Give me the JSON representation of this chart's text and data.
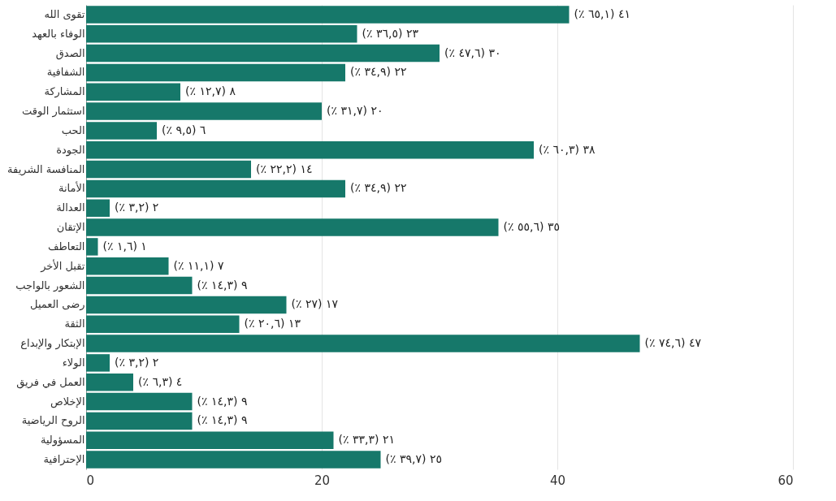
{
  "chart_data": {
    "type": "bar",
    "orientation": "horizontal",
    "categories": [
      "تقوى الله",
      "الوفاء بالعهد",
      "الصدق",
      "الشفافية",
      "المشاركة",
      "استثمار الوقت",
      "الحب",
      "الجودة",
      "المنافسة الشريفة",
      "الأمانة",
      "العدالة",
      "الإتقان",
      "التعاطف",
      "تقبل الأخر",
      "الشعور بالواجب",
      "رضى العميل",
      "الثقة",
      "الإبتكار والإبداع",
      "الولاء",
      "العمل في فريق",
      "الإخلاص",
      "الروح الرياضية",
      "المسؤولية",
      "الإحترافية"
    ],
    "values": [
      41,
      23,
      30,
      22,
      8,
      20,
      6,
      38,
      14,
      22,
      2,
      35,
      1,
      7,
      9,
      17,
      13,
      47,
      2,
      4,
      9,
      9,
      21,
      25
    ],
    "value_labels": [
      "٤١ (٦٥,١ ٪)",
      "٢٣ (٣٦,٥ ٪)",
      "٣٠ (٤٧,٦ ٪)",
      "٢٢ (٣٤,٩ ٪)",
      "٨ (١٢,٧ ٪)",
      "٢٠ (٣١,٧ ٪)",
      "٦ (٩,٥ ٪)",
      "٣٨ (٦٠,٣ ٪)",
      "١٤ (٢٢,٢ ٪)",
      "٢٢ (٣٤,٩ ٪)",
      "٢ (٣,٢ ٪)",
      "٣٥ (٥٥,٦ ٪)",
      "١ (١,٦ ٪)",
      "٧ (١١,١ ٪)",
      "٩ (١٤,٣ ٪)",
      "١٧ (٢٧ ٪)",
      "١٣ (٢٠,٦ ٪)",
      "٤٧ (٧٤,٦ ٪)",
      "٢ (٣,٢ ٪)",
      "٤ (٦,٣ ٪)",
      "٩ (١٤,٣ ٪)",
      "٩ (١٤,٣ ٪)",
      "٢١ (٣٣,٣ ٪)",
      "٢٥ (٣٩,٧ ٪)"
    ],
    "color": "#16786a",
    "xlim": [
      0,
      60
    ],
    "xticks": [
      0,
      20,
      40,
      60
    ],
    "grid": "x"
  }
}
